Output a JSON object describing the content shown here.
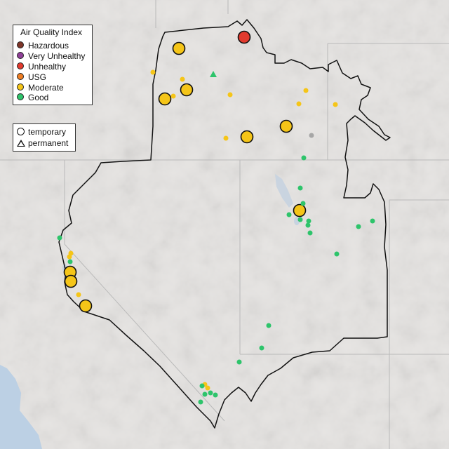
{
  "legend": {
    "title": "Air Quality Index",
    "categories": [
      {
        "label": "Hazardous",
        "color": "#7e3528"
      },
      {
        "label": "Very Unhealthy",
        "color": "#8f3f97"
      },
      {
        "label": "Unhealthy",
        "color": "#e23a2e"
      },
      {
        "label": "USG",
        "color": "#ef7e23"
      },
      {
        "label": "Moderate",
        "color": "#f5c518"
      },
      {
        "label": "Good",
        "color": "#2ec46b"
      }
    ],
    "types": [
      {
        "label": "temporary",
        "icon": "circle-icon"
      },
      {
        "label": "permanent",
        "icon": "triangle-icon"
      }
    ]
  },
  "colors": {
    "basemap": "#e6e4e2",
    "state_border": "#b9b9b9",
    "region_outline": "#111111",
    "water": "#c7d3e0",
    "ocean": "#bcd0e4"
  }
}
